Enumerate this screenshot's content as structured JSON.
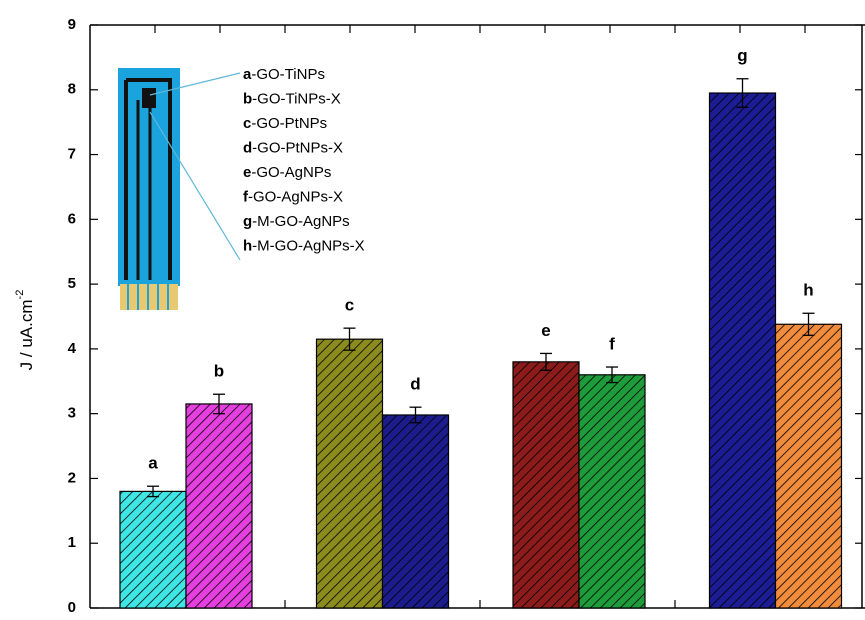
{
  "chart_data": {
    "type": "bar",
    "categories": [
      "a",
      "b",
      "c",
      "d",
      "e",
      "f",
      "g",
      "h"
    ],
    "values": [
      1.8,
      3.15,
      4.15,
      2.98,
      3.8,
      3.6,
      7.95,
      4.38
    ],
    "errors": [
      0.08,
      0.15,
      0.17,
      0.12,
      0.13,
      0.12,
      0.22,
      0.17
    ],
    "colors": [
      "#3fe6e6",
      "#e63fe0",
      "#8c8c1e",
      "#1c1c8c",
      "#8c1c1c",
      "#1e9c3c",
      "#1c1c94",
      "#f08c3c"
    ],
    "legend": [
      "-GO-TiNPs",
      "-GO-TiNPs-X",
      "-GO-PtNPs",
      "-GO-PtNPs-X",
      "-GO-AgNPs",
      "-GO-AgNPs-X",
      "-M-GO-AgNPs",
      "-M-GO-AgNPs-X"
    ],
    "ylim": [
      0,
      9
    ],
    "yticks": [
      0,
      1,
      2,
      3,
      4,
      5,
      6,
      7,
      8,
      9
    ],
    "y_label": "J / uA.cm",
    "y_label_superscript": "-2"
  }
}
